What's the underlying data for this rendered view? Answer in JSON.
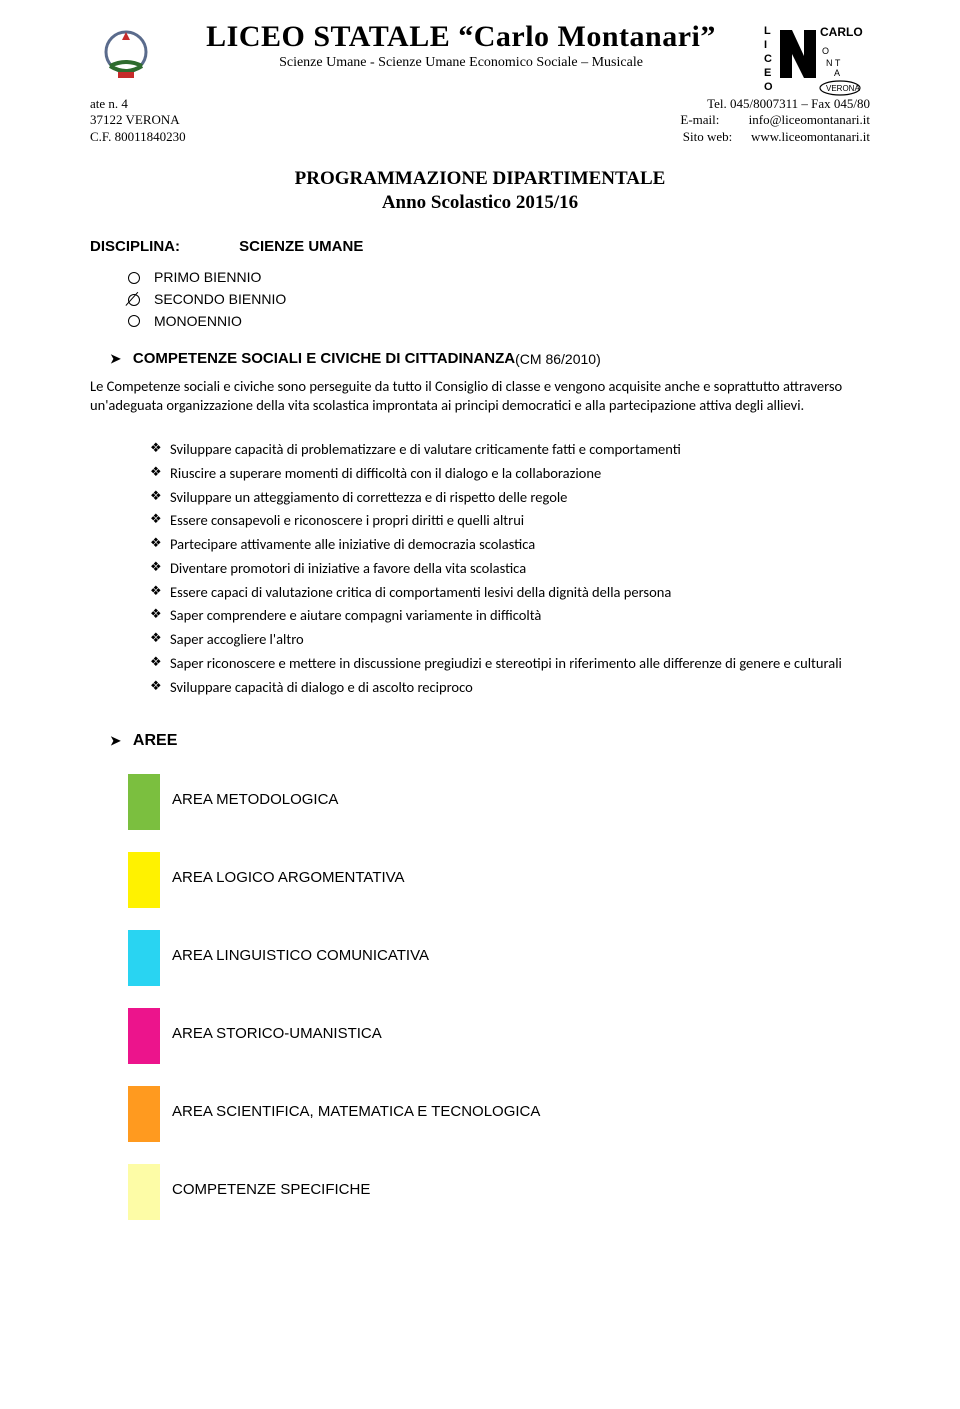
{
  "header": {
    "school_name": "LICEO STATALE  “Carlo Montanari”",
    "school_sub": "Scienze Umane - Scienze Umane Economico Sociale – Musicale",
    "addr_left_1": "ate  n. 4",
    "addr_left_2": "37122   VERONA",
    "addr_left_3": "C.F. 80011840230",
    "addr_right_1": "Tel. 045/8007311 – Fax 045/80",
    "addr_right_2_lbl": "E-mail:",
    "addr_right_2_val": "info@liceomontanari.it",
    "addr_right_3_lbl": "Sito web:",
    "addr_right_3_val": "www.liceomontanari.it"
  },
  "prog_title_1": "PROGRAMMAZIONE DIPARTIMENTALE",
  "prog_title_2": "Anno Scolastico 2015/16",
  "disciplina_label": "DISCIPLINA:",
  "disciplina_value": "SCIENZE UMANE",
  "options": [
    {
      "label": "PRIMO BIENNIO",
      "struck": false
    },
    {
      "label": "SECONDO BIENNIO",
      "struck": true
    },
    {
      "label": "MONOENNIO",
      "struck": false
    }
  ],
  "competenze_heading": "COMPETENZE SOCIALI E CIVICHE DI CITTADINANZA",
  "competenze_cm": " (CM 86/2010)",
  "intro_para": "Le Competenze sociali e civiche sono perseguite da tutto il Consiglio di classe e vengono acquisite anche e soprattutto attraverso un'adeguata organizzazione della vita scolastica improntata ai principi democratici e alla partecipazione attiva degli allievi.",
  "bullets": [
    "Sviluppare capacità di problematizzare e di valutare criticamente fatti e comportamenti",
    "Riuscire a superare momenti di difficoltà con il dialogo e la collaborazione",
    "Sviluppare un atteggiamento di correttezza e di rispetto delle regole",
    "Essere consapevoli e riconoscere i propri diritti e quelli altrui",
    "Partecipare attivamente alle iniziative di democrazia scolastica",
    "Diventare promotori di iniziative a favore della vita scolastica",
    "Essere capaci di valutazione critica di comportamenti lesivi della dignità della persona",
    "Saper comprendere e aiutare compagni variamente in difficoltà",
    "Saper accogliere l'altro",
    "Saper riconoscere e mettere in discussione pregiudizi e stereotipi in riferimento alle differenze di genere e culturali",
    "Sviluppare capacità di dialogo e di ascolto reciproco"
  ],
  "aree_heading": "AREE",
  "areas": [
    {
      "color": "#7bbf3f",
      "label": "AREA METODOLOGICA"
    },
    {
      "color": "#fff200",
      "label": "AREA LOGICO ARGOMENTATIVA"
    },
    {
      "color": "#29d4f2",
      "label": "AREA LINGUISTICO COMUNICATIVA"
    },
    {
      "color": "#ec148c",
      "label": "AREA STORICO-UMANISTICA"
    },
    {
      "color": "#ff9a1f",
      "label": "AREA SCIENTIFICA, MATEMATICA E TECNOLOGICA"
    },
    {
      "color": "#fdfca6",
      "label": "COMPETENZE SPECIFICHE"
    }
  ],
  "glyphs": {
    "triangle": "➤",
    "diamond": "❖"
  }
}
